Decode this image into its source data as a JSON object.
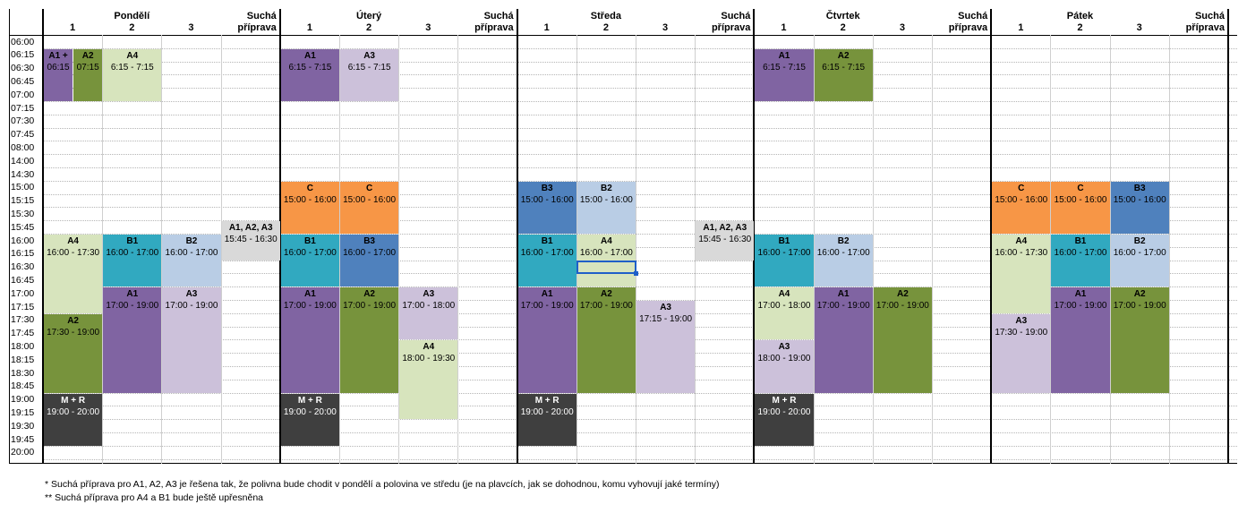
{
  "days": [
    "Pondělí",
    "Úterý",
    "Středa",
    "Čtvrtek",
    "Pátek"
  ],
  "columns": [
    "1",
    "2",
    "3"
  ],
  "dry_label": [
    "Suchá",
    "příprava"
  ],
  "times": [
    "06:00",
    "06:15",
    "06:30",
    "06:45",
    "07:00",
    "07:15",
    "07:30",
    "07:45",
    "08:00",
    "14:00",
    "14:30",
    "15:00",
    "15:15",
    "15:30",
    "15:45",
    "16:00",
    "16:15",
    "16:30",
    "16:45",
    "17:00",
    "17:15",
    "17:30",
    "17:45",
    "18:00",
    "18:15",
    "18:30",
    "18:45",
    "19:00",
    "19:15",
    "19:30",
    "19:45",
    "20:00"
  ],
  "blocks": [
    {
      "id": "mon-a1",
      "name": "A1 +",
      "time": "06:15"
    },
    {
      "id": "mon-a2",
      "name": "A2",
      "time": "07:15"
    },
    {
      "id": "mon-a4",
      "name": "A4",
      "time": "6:15 - 7:15"
    },
    {
      "id": "tue-a1",
      "name": "A1",
      "time": "6:15 - 7:15"
    },
    {
      "id": "tue-a3",
      "name": "A3",
      "time": "6:15 - 7:15"
    },
    {
      "id": "thu-a1",
      "name": "A1",
      "time": "6:15 - 7:15"
    },
    {
      "id": "thu-a2",
      "name": "A2",
      "time": "6:15 - 7:15"
    },
    {
      "id": "tue-c1",
      "name": "C",
      "time": "15:00 - 16:00"
    },
    {
      "id": "tue-c2",
      "name": "C",
      "time": "15:00 - 16:00"
    },
    {
      "id": "wed-b3",
      "name": "B3",
      "time": "15:00 - 16:00"
    },
    {
      "id": "wed-b2",
      "name": "B2",
      "time": "15:00 - 16:00"
    },
    {
      "id": "fri-c1",
      "name": "C",
      "time": "15:00 - 16:00"
    },
    {
      "id": "fri-c2",
      "name": "C",
      "time": "15:00 - 16:00"
    },
    {
      "id": "fri-b3",
      "name": "B3",
      "time": "15:00 - 16:00"
    },
    {
      "id": "mon-dry",
      "name": "A1, A2, A3",
      "time": "15:45 - 16:30"
    },
    {
      "id": "wed-dry",
      "name": "A1, A2, A3",
      "time": "15:45 - 16:30"
    },
    {
      "id": "mon-a4b",
      "name": "A4",
      "time": "16:00 - 17:30"
    },
    {
      "id": "mon-b1",
      "name": "B1",
      "time": "16:00 - 17:00"
    },
    {
      "id": "mon-b2",
      "name": "B2",
      "time": "16:00 - 17:00"
    },
    {
      "id": "tue-b1",
      "name": "B1",
      "time": "16:00 - 17:00"
    },
    {
      "id": "tue-b3",
      "name": "B3",
      "time": "16:00 - 17:00"
    },
    {
      "id": "wed-b1",
      "name": "B1",
      "time": "16:00 - 17:00"
    },
    {
      "id": "wed-a4",
      "name": "A4",
      "time": "16:00 - 17:00"
    },
    {
      "id": "thu-b1",
      "name": "B1",
      "time": "16:00 - 17:00"
    },
    {
      "id": "thu-b2",
      "name": "B2",
      "time": "16:00 - 17:00"
    },
    {
      "id": "fri-a4",
      "name": "A4",
      "time": "16:00 - 17:30"
    },
    {
      "id": "fri-b1",
      "name": "B1",
      "time": "16:00 - 17:00"
    },
    {
      "id": "fri-b2",
      "name": "B2",
      "time": "16:00 - 17:00"
    },
    {
      "id": "mon-a1b",
      "name": "A1",
      "time": "17:00 - 19:00"
    },
    {
      "id": "mon-a3",
      "name": "A3",
      "time": "17:00 - 19:00"
    },
    {
      "id": "mon-a2b",
      "name": "A2",
      "time": "17:30 - 19:00"
    },
    {
      "id": "tue-a1b",
      "name": "A1",
      "time": "17:00 - 19:00"
    },
    {
      "id": "tue-a2",
      "name": "A2",
      "time": "17:00 - 19:00"
    },
    {
      "id": "tue-a3b",
      "name": "A3",
      "time": "17:00 - 18:00"
    },
    {
      "id": "tue-a4",
      "name": "A4",
      "time": "18:00 - 19:30"
    },
    {
      "id": "wed-a1",
      "name": "A1",
      "time": "17:00 - 19:00"
    },
    {
      "id": "wed-a2",
      "name": "A2",
      "time": "17:00 - 19:00"
    },
    {
      "id": "wed-a3",
      "name": "A3",
      "time": "17:15 - 19:00"
    },
    {
      "id": "thu-a4",
      "name": "A4",
      "time": "17:00 - 18:00"
    },
    {
      "id": "thu-a1b",
      "name": "A1",
      "time": "17:00 - 19:00"
    },
    {
      "id": "thu-a2b",
      "name": "A2",
      "time": "17:00 - 19:00"
    },
    {
      "id": "thu-a3",
      "name": "A3",
      "time": "18:00 - 19:00"
    },
    {
      "id": "fri-a1",
      "name": "A1",
      "time": "17:00 - 19:00"
    },
    {
      "id": "fri-a2",
      "name": "A2",
      "time": "17:00 - 19:00"
    },
    {
      "id": "fri-a3",
      "name": "A3",
      "time": "17:30 - 19:00"
    },
    {
      "id": "mon-mr",
      "name": "M + R",
      "time": "19:00 - 20:00"
    },
    {
      "id": "tue-mr",
      "name": "M + R",
      "time": "19:00 - 20:00"
    },
    {
      "id": "wed-mr",
      "name": "M + R",
      "time": "19:00 - 20:00"
    },
    {
      "id": "thu-mr",
      "name": "M + R",
      "time": "19:00 - 20:00"
    }
  ],
  "notes": [
    "* Suchá příprava pro A1, A2, A3 je řešena tak, že polivna bude chodit v pondělí a polovina ve středu (je na plavcích, jak se dohodnou, komu vyhovují jaké termíny)",
    "** Suchá příprava pro A4 a B1 bude ještě upřesněna"
  ]
}
